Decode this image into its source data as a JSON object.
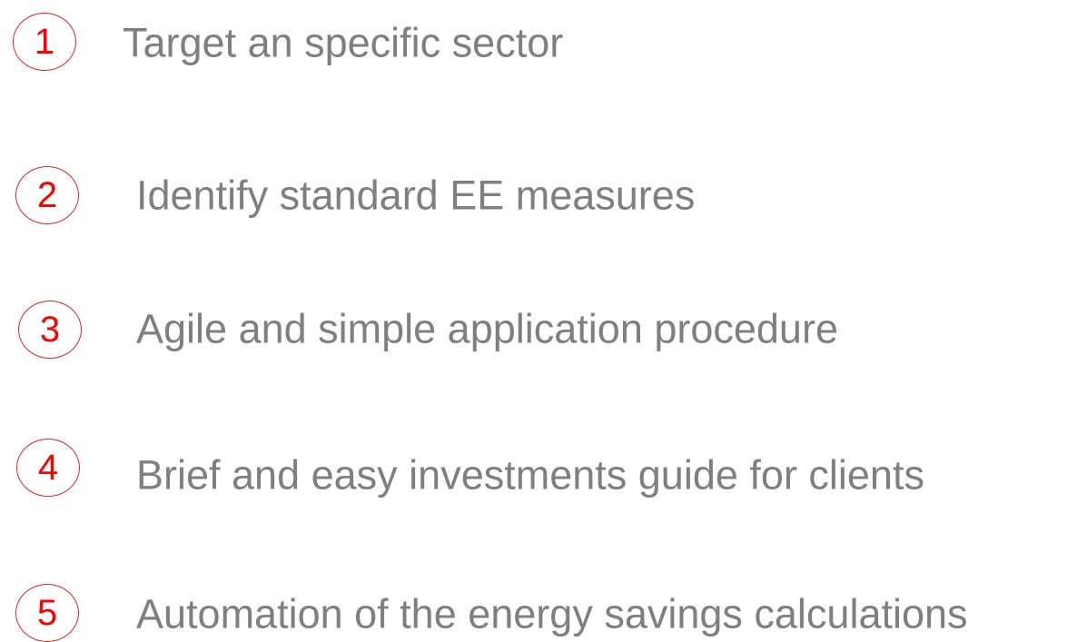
{
  "items": [
    {
      "number": 1,
      "text": "Target an specific sector"
    },
    {
      "number": 2,
      "text": "Identify standard EE measures"
    },
    {
      "number": 3,
      "text": "Agile and simple application procedure"
    },
    {
      "number": 4,
      "text": "Brief and easy investments guide for clients"
    },
    {
      "number": 5,
      "text": "Automation of the energy savings calculations"
    }
  ]
}
